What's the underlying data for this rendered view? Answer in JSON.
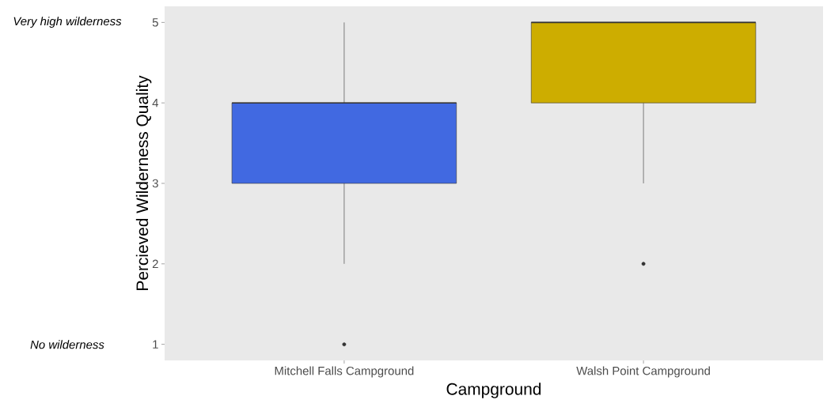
{
  "chart_data": {
    "type": "box",
    "xlabel": "Campground",
    "ylabel": "Percieved Wilderness Quality",
    "categories": [
      "Mitchell Falls Campground",
      "Walsh Point Campground"
    ],
    "colors": [
      "#4169e1",
      "#cdad00"
    ],
    "boxes": [
      {
        "low": 2,
        "q1": 3,
        "median": 4,
        "q3": 4,
        "high": 5,
        "outliers": [
          1
        ]
      },
      {
        "low": 3,
        "q1": 4,
        "median": 5,
        "q3": 5,
        "high": 5,
        "outliers": [
          2
        ]
      }
    ],
    "ylim": [
      0.8,
      5.2
    ],
    "yticks": [
      1,
      2,
      3,
      4,
      5
    ],
    "annotations": [
      "Very high wilderness",
      "No wilderness"
    ]
  }
}
